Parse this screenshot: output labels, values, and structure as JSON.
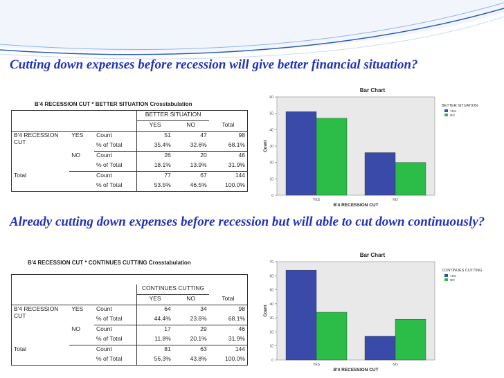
{
  "colors": {
    "accent": "#2233bb",
    "yes": "#3a4aa8",
    "no": "#2bbd48",
    "plot_bg": "#e9e9e9"
  },
  "slide": {
    "question1": "Cutting down expenses before recession will give better financial situation?",
    "question2": "Already cutting down expenses before recession but will able to cut down continuously?"
  },
  "crosstab1": {
    "title": "B'4 RECESSION CUT * BETTER SITUATION Crosstabulation",
    "col_group": "BETTER SITUATION",
    "col_yes": "YES",
    "col_no": "NO",
    "col_total": "Total",
    "row_var": "B'4 RECESSION CUT",
    "row_yes": "YES",
    "row_no": "NO",
    "row_total": "Total",
    "label_count": "Count",
    "label_pct": "% of Total",
    "yes_count": [
      "51",
      "47",
      "98"
    ],
    "yes_pct": [
      "35.4%",
      "32.6%",
      "68.1%"
    ],
    "no_count": [
      "26",
      "20",
      "46"
    ],
    "no_pct": [
      "18.1%",
      "13.9%",
      "31.9%"
    ],
    "total_count": [
      "77",
      "67",
      "144"
    ],
    "total_pct": [
      "53.5%",
      "46.5%",
      "100.0%"
    ]
  },
  "crosstab2": {
    "title": "B'4 RECESSION CUT * CONTINUES CUTTING Crosstabulation",
    "col_group": "CONTINUES CUTTING",
    "col_yes": "YES",
    "col_no": "NO",
    "col_total": "Total",
    "row_var": "B'4 RECESSION CUT",
    "row_yes": "YES",
    "row_no": "NO",
    "row_total": "Total",
    "label_count": "Count",
    "label_pct": "% of Total",
    "yes_count": [
      "64",
      "34",
      "98"
    ],
    "yes_pct": [
      "44.4%",
      "23.6%",
      "68.1%"
    ],
    "no_count": [
      "17",
      "29",
      "46"
    ],
    "no_pct": [
      "11.8%",
      "20.1%",
      "31.9%"
    ],
    "total_count": [
      "81",
      "63",
      "144"
    ],
    "total_pct": [
      "56.3%",
      "43.8%",
      "100.0%"
    ]
  },
  "chart_data": [
    {
      "type": "bar",
      "title": "Bar Chart",
      "xlabel": "B'4 RECESSION CUT",
      "ylabel": "Count",
      "categories": [
        "YES",
        "NO"
      ],
      "series": [
        {
          "name": "YES",
          "values": [
            51,
            26
          ]
        },
        {
          "name": "NO",
          "values": [
            47,
            20
          ]
        }
      ],
      "legend_title": "BETTER SITUATION",
      "legend_position": "top-right",
      "ylim": [
        0,
        60
      ],
      "yticks": [
        0,
        10,
        20,
        30,
        40,
        50,
        60
      ]
    },
    {
      "type": "bar",
      "title": "Bar Chart",
      "xlabel": "B'4 RECESSION CUT",
      "ylabel": "Count",
      "categories": [
        "YES",
        "NO"
      ],
      "series": [
        {
          "name": "YES",
          "values": [
            64,
            17
          ]
        },
        {
          "name": "NO",
          "values": [
            34,
            29
          ]
        }
      ],
      "legend_title": "CONTINUES CUTTING",
      "legend_position": "top-right",
      "ylim": [
        0,
        70
      ],
      "yticks": [
        0,
        10,
        20,
        30,
        40,
        50,
        60,
        70
      ]
    }
  ]
}
